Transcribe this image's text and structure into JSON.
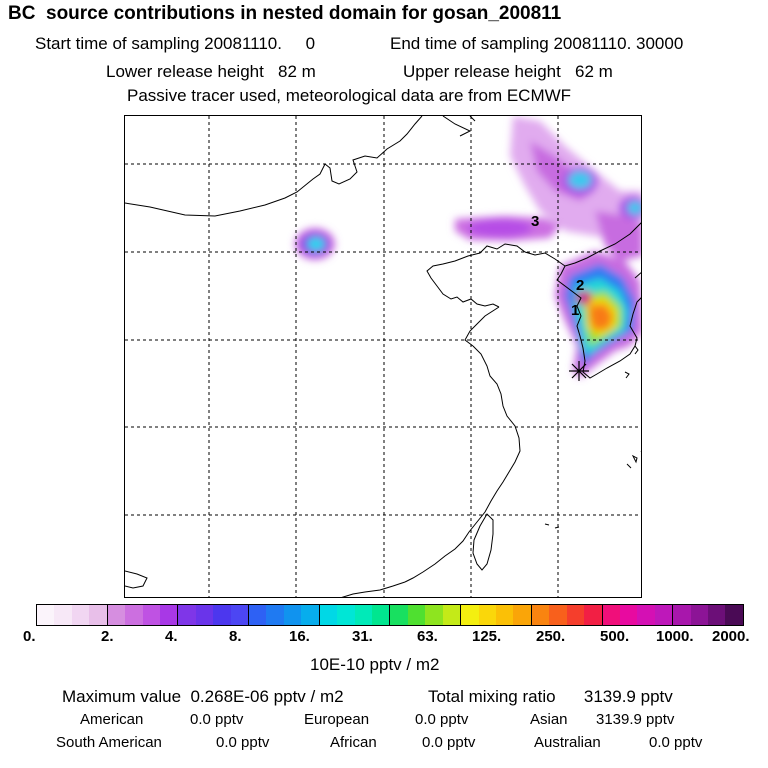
{
  "header": {
    "title": "BC  source contributions in nested domain for gosan_200811",
    "start_label": "Start time of sampling 20081110.     0",
    "end_label": "End time of sampling 20081110. 30000",
    "lower_label": "Lower release height   82 m",
    "upper_label": "Upper release height   62 m",
    "note": "Passive tracer used, meteorological data are from ECMWF"
  },
  "map": {
    "markers": [
      {
        "label": "1"
      },
      {
        "label": "2"
      },
      {
        "label": "3"
      }
    ]
  },
  "colorbar": {
    "ticks": [
      "0.",
      "2.",
      "4.",
      "8.",
      "16.",
      "31.",
      "63.",
      "125.",
      "250.",
      "500.",
      "1000.",
      "2000."
    ],
    "unit": "10E-10 pptv / m2",
    "colors": [
      "#fbf4fb",
      "#f7e8f7",
      "#f1d6f2",
      "#e8bfe9",
      "#d68ee0",
      "#cc6fe0",
      "#bf52e3",
      "#a838e6",
      "#7f36e8",
      "#6a34ea",
      "#4c37ee",
      "#4c46f3",
      "#2e61f4",
      "#1f7af2",
      "#1093ef",
      "#07aded",
      "#00d8e6",
      "#00e6d6",
      "#00eab8",
      "#00e68f",
      "#18e060",
      "#4fe030",
      "#8ee41f",
      "#c4ea18",
      "#f4ef10",
      "#fad70a",
      "#fbc006",
      "#faa508",
      "#f98410",
      "#f8601c",
      "#f53e2c",
      "#f21f44",
      "#f00f7a",
      "#e80aa0",
      "#d410b4",
      "#be18ba",
      "#a817ac",
      "#8c1496",
      "#6c0f78",
      "#4a0a55"
    ]
  },
  "footer": {
    "max_label": "Maximum value  0.268E-06 pptv / m2",
    "total_label": "Total mixing ratio      3139.9 pptv",
    "american": "American",
    "american_val": "0.0 pptv",
    "european": "European",
    "european_val": "0.0 pptv",
    "asian": "Asian",
    "asian_val": "3139.9 pptv",
    "south_american": "South American",
    "south_american_val": "0.0 pptv",
    "african": "African",
    "african_val": "0.0 pptv",
    "australian": "Australian",
    "australian_val": "0.0 pptv"
  }
}
